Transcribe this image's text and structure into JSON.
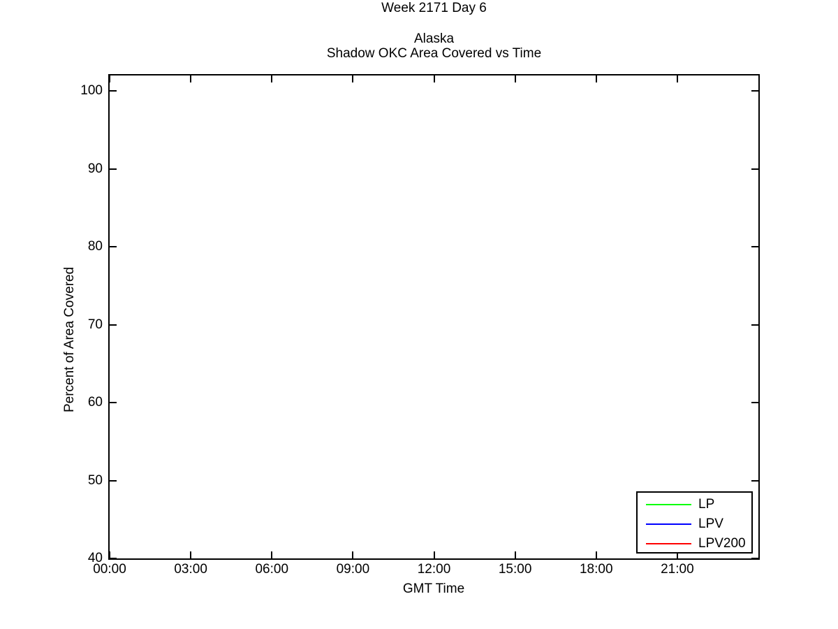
{
  "figure": {
    "background_color": "#ffffff",
    "axis_color": "#000000",
    "text_color": "#000000"
  },
  "chart_data": {
    "type": "line",
    "figure_title": "Week 2171 Day 6",
    "title_lines": [
      "Alaska",
      "Shadow OKC Area Covered vs Time"
    ],
    "xlabel": "GMT Time",
    "ylabel": "Percent of Area Covered",
    "x_axis": {
      "unit": "hours",
      "min": 0,
      "max": 24,
      "ticks": [
        {
          "hour": 0,
          "label": "00:00"
        },
        {
          "hour": 3,
          "label": "03:00"
        },
        {
          "hour": 6,
          "label": "06:00"
        },
        {
          "hour": 9,
          "label": "09:00"
        },
        {
          "hour": 12,
          "label": "12:00"
        },
        {
          "hour": 15,
          "label": "15:00"
        },
        {
          "hour": 18,
          "label": "18:00"
        },
        {
          "hour": 21,
          "label": "21:00"
        }
      ]
    },
    "y_axis": {
      "min": 40,
      "max": 102,
      "ticks": [
        40,
        50,
        60,
        70,
        80,
        90,
        100
      ]
    },
    "grid": false,
    "box": true,
    "legend": {
      "position": "bottom-right",
      "border_color": "#000000"
    },
    "series": [
      {
        "name": "LP",
        "color": "#00ff00",
        "points": []
      },
      {
        "name": "LPV",
        "color": "#0000ff",
        "points": []
      },
      {
        "name": "LPV200",
        "color": "#ff0000",
        "points": []
      }
    ]
  }
}
